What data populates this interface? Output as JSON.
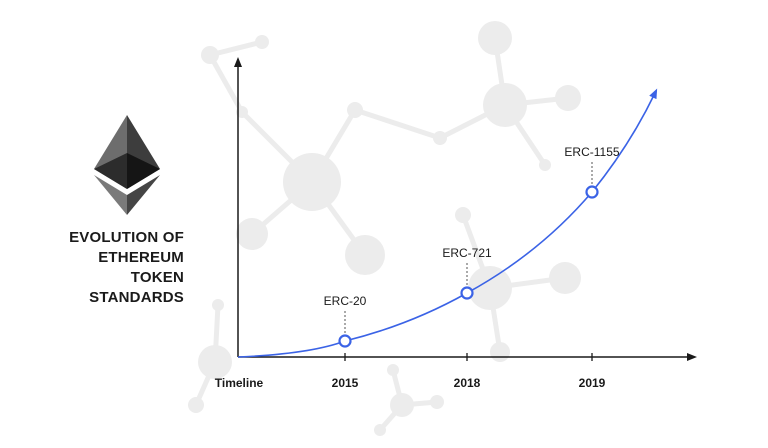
{
  "heading": {
    "lines": [
      "EVOLUTION OF",
      "ETHEREUM",
      "TOKEN",
      "STANDARDS"
    ]
  },
  "logo": {
    "icon": "ethereum-icon"
  },
  "colors": {
    "accent": "#3b63e6",
    "axis": "#1a1a1a",
    "text": "#1a1a1a",
    "network": "#ececec"
  },
  "chart_data": {
    "type": "line",
    "xlabel": "Timeline",
    "ylabel": "",
    "categories": [
      "2015",
      "2018",
      "2019"
    ],
    "series": [
      {
        "points": [
          {
            "x": "2015",
            "label": "ERC-20"
          },
          {
            "x": "2018",
            "label": "ERC-721"
          },
          {
            "x": "2019",
            "label": "ERC-1155"
          }
        ]
      }
    ],
    "grid": false,
    "legend": "none"
  }
}
